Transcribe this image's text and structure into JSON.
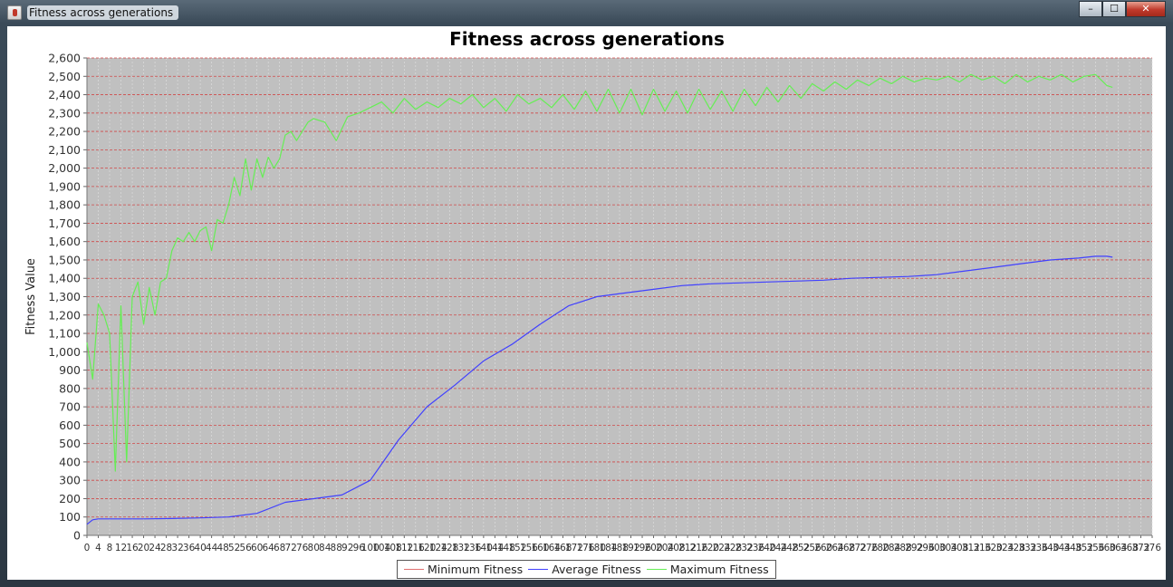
{
  "window": {
    "title": "Fitness across generations",
    "icon": "java-cup-icon",
    "controls": {
      "minimize": "–",
      "maximize": "☐",
      "close": "✕"
    }
  },
  "colors": {
    "plot_background": "#c0c0c0",
    "grid_line": "#d04848",
    "minimum": "#e07070",
    "average": "#4040ff",
    "maximum": "#66ee55"
  },
  "chart_data": {
    "type": "line",
    "title": "Fitness across generations",
    "xlabel": "",
    "ylabel": "Fitness Value",
    "ylim": [
      0,
      2600
    ],
    "xlim": [
      0,
      376
    ],
    "y_ticks": [
      "0",
      "100",
      "200",
      "300",
      "400",
      "500",
      "600",
      "700",
      "800",
      "900",
      "1,000",
      "1,100",
      "1,200",
      "1,300",
      "1,400",
      "1,500",
      "1,600",
      "1,700",
      "1,800",
      "1,900",
      "2,000",
      "2,100",
      "2,200",
      "2,300",
      "2,400",
      "2,500",
      "2,600"
    ],
    "x_tick_step": 4,
    "x_tick_labels": [
      "0",
      "4",
      "8",
      "12",
      "16",
      "20",
      "24",
      "28",
      "32",
      "36",
      "40",
      "44",
      "48",
      "52",
      "56",
      "60",
      "64",
      "68",
      "72",
      "76",
      "80",
      "84",
      "88",
      "92",
      "96",
      "100",
      "104",
      "108",
      "112",
      "116",
      "120",
      "124",
      "128",
      "132",
      "136",
      "140",
      "144",
      "148",
      "152",
      "156",
      "160",
      "164",
      "168",
      "172",
      "176",
      "180",
      "184",
      "188",
      "192",
      "196",
      "200",
      "204",
      "208",
      "212",
      "216",
      "220",
      "224",
      "228",
      "232",
      "236",
      "240",
      "244",
      "248",
      "252",
      "256",
      "260",
      "264",
      "268",
      "272",
      "276",
      "280",
      "284",
      "288",
      "292",
      "296",
      "300",
      "304",
      "308",
      "312",
      "316",
      "320",
      "324",
      "328",
      "332",
      "336",
      "340",
      "344",
      "348",
      "352",
      "356",
      "360",
      "364",
      "368",
      "372",
      "376"
    ],
    "grid": true,
    "legend_position": "bottom",
    "series": [
      {
        "name": "Minimum Fitness",
        "x": [],
        "y": []
      },
      {
        "name": "Average Fitness",
        "x": [
          0,
          2,
          4,
          10,
          20,
          30,
          40,
          50,
          60,
          70,
          80,
          90,
          100,
          110,
          120,
          130,
          140,
          150,
          160,
          170,
          180,
          190,
          200,
          210,
          220,
          230,
          240,
          250,
          260,
          270,
          280,
          290,
          300,
          310,
          320,
          330,
          340,
          350,
          356,
          360,
          362
        ],
        "y": [
          60,
          85,
          90,
          90,
          90,
          92,
          95,
          100,
          120,
          180,
          200,
          220,
          300,
          520,
          700,
          820,
          950,
          1040,
          1150,
          1250,
          1300,
          1320,
          1340,
          1360,
          1370,
          1375,
          1380,
          1385,
          1390,
          1400,
          1405,
          1410,
          1420,
          1440,
          1460,
          1480,
          1500,
          1510,
          1520,
          1520,
          1515
        ]
      },
      {
        "name": "Maximum Fitness",
        "x": [
          0,
          2,
          4,
          6,
          8,
          10,
          12,
          14,
          16,
          18,
          20,
          22,
          24,
          26,
          28,
          30,
          32,
          34,
          36,
          38,
          40,
          42,
          44,
          46,
          48,
          50,
          52,
          54,
          56,
          58,
          60,
          62,
          64,
          66,
          68,
          70,
          72,
          74,
          76,
          78,
          80,
          84,
          88,
          92,
          96,
          100,
          104,
          108,
          112,
          116,
          120,
          124,
          128,
          132,
          136,
          140,
          144,
          148,
          152,
          156,
          160,
          164,
          168,
          172,
          176,
          180,
          184,
          188,
          192,
          196,
          200,
          204,
          208,
          212,
          216,
          220,
          224,
          228,
          232,
          236,
          240,
          244,
          248,
          252,
          256,
          260,
          264,
          268,
          272,
          276,
          280,
          284,
          288,
          292,
          296,
          300,
          304,
          308,
          312,
          316,
          320,
          324,
          328,
          332,
          336,
          340,
          344,
          348,
          352,
          356,
          360,
          362
        ],
        "y": [
          1050,
          850,
          1260,
          1200,
          1100,
          350,
          1250,
          400,
          1300,
          1380,
          1150,
          1350,
          1200,
          1380,
          1400,
          1550,
          1620,
          1600,
          1650,
          1600,
          1660,
          1680,
          1550,
          1720,
          1700,
          1800,
          1950,
          1850,
          2050,
          1880,
          2050,
          1950,
          2060,
          2000,
          2050,
          2180,
          2200,
          2150,
          2200,
          2250,
          2270,
          2250,
          2150,
          2280,
          2300,
          2330,
          2360,
          2300,
          2380,
          2320,
          2360,
          2330,
          2380,
          2350,
          2400,
          2330,
          2380,
          2310,
          2400,
          2350,
          2380,
          2330,
          2400,
          2320,
          2420,
          2310,
          2430,
          2300,
          2430,
          2290,
          2430,
          2310,
          2420,
          2300,
          2430,
          2320,
          2420,
          2310,
          2430,
          2340,
          2440,
          2360,
          2450,
          2380,
          2460,
          2420,
          2470,
          2430,
          2480,
          2450,
          2490,
          2460,
          2500,
          2470,
          2490,
          2480,
          2500,
          2470,
          2510,
          2480,
          2500,
          2460,
          2510,
          2470,
          2500,
          2480,
          2510,
          2470,
          2500,
          2510,
          2450,
          2440
        ]
      }
    ]
  }
}
